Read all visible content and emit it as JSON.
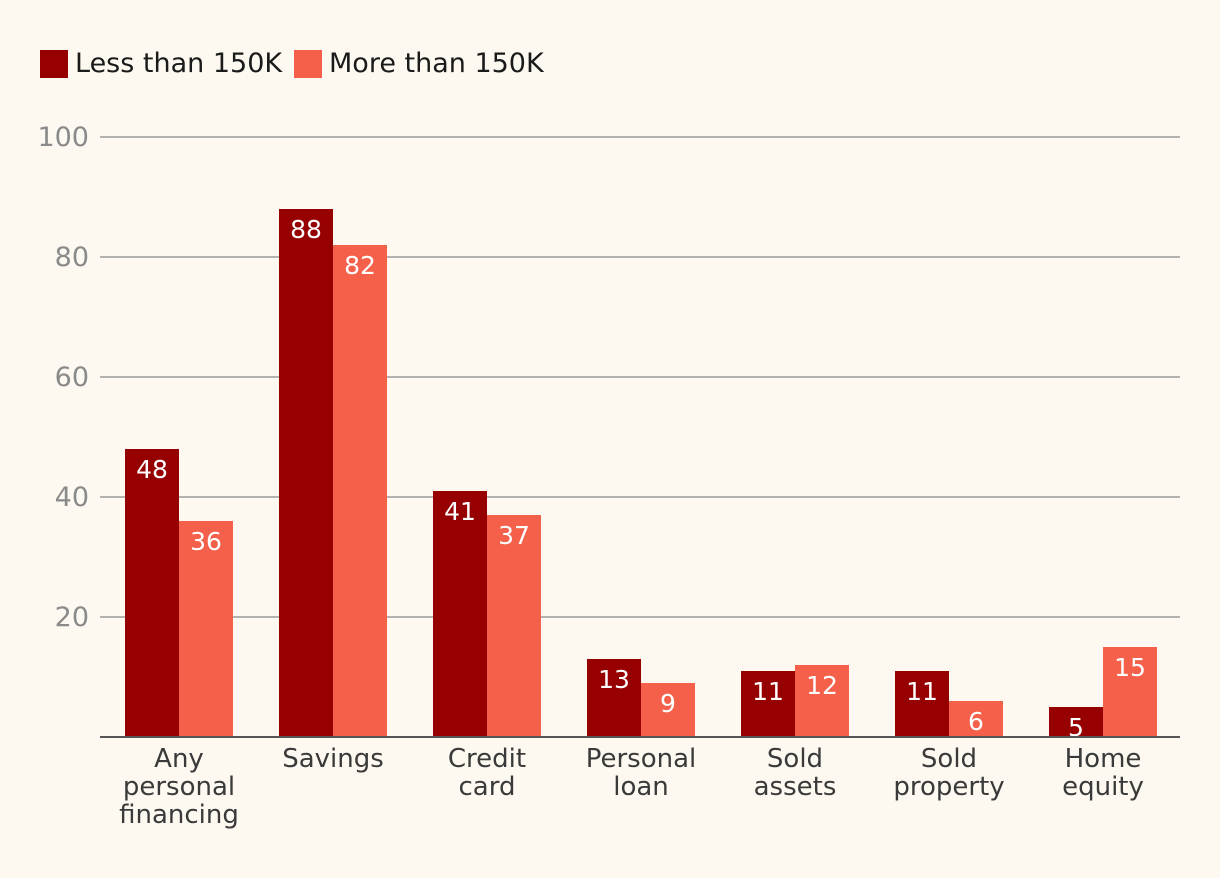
{
  "chart_data": {
    "type": "bar",
    "categories": [
      [
        "Any",
        "personal",
        "financing"
      ],
      [
        "Savings"
      ],
      [
        "Credit",
        "card"
      ],
      [
        "Personal",
        "loan"
      ],
      [
        "Sold",
        "assets"
      ],
      [
        "Sold",
        "property"
      ],
      [
        "Home",
        "equity"
      ]
    ],
    "series": [
      {
        "name": "Less than 150K",
        "color": "#960000",
        "values": [
          48,
          88,
          41,
          13,
          11,
          11,
          5
        ]
      },
      {
        "name": "More than 150K",
        "color": "#f4604a",
        "values": [
          36,
          82,
          37,
          9,
          12,
          6,
          15
        ]
      }
    ],
    "yticks": [
      20,
      40,
      60,
      80,
      100
    ],
    "ylim": [
      0,
      100
    ],
    "grid": true,
    "legend_position": "top-left",
    "title": "",
    "xlabel": "",
    "ylabel": ""
  }
}
